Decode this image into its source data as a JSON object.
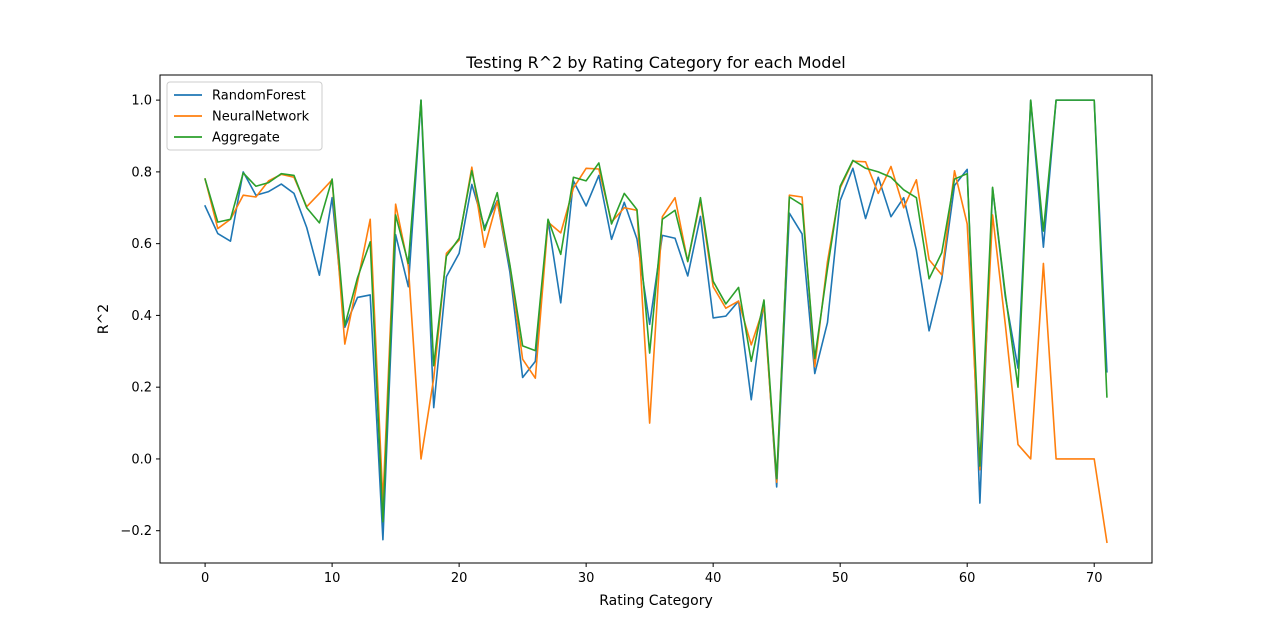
{
  "chart_data": {
    "type": "line",
    "title": "Testing R^2 by Rating Category for each Model",
    "xlabel": "Rating Category",
    "ylabel": "R^2",
    "xlim": [
      -3.55,
      74.55
    ],
    "ylim": [
      -0.29,
      1.07
    ],
    "xticks": [
      0,
      10,
      20,
      30,
      40,
      50,
      60,
      70
    ],
    "yticks": [
      -0.2,
      0.0,
      0.2,
      0.4,
      0.6,
      0.8,
      1.0
    ],
    "xtick_labels": [
      "0",
      "10",
      "20",
      "30",
      "40",
      "50",
      "60",
      "70"
    ],
    "ytick_labels": [
      "−0.2",
      "0.0",
      "0.2",
      "0.4",
      "0.6",
      "0.8",
      "1.0"
    ],
    "grid": false,
    "legend_position": "top-left",
    "x": [
      0,
      1,
      2,
      3,
      4,
      5,
      6,
      7,
      8,
      9,
      10,
      11,
      12,
      13,
      14,
      15,
      16,
      17,
      18,
      19,
      20,
      21,
      22,
      23,
      24,
      25,
      26,
      27,
      28,
      29,
      30,
      31,
      32,
      33,
      34,
      35,
      36,
      37,
      38,
      39,
      40,
      41,
      42,
      43,
      44,
      45,
      46,
      47,
      48,
      49,
      50,
      51,
      52,
      53,
      54,
      55,
      56,
      57,
      58,
      59,
      60,
      61,
      62,
      63,
      64,
      65,
      66,
      67,
      68,
      69,
      70,
      71
    ],
    "series": [
      {
        "name": "RandomForest",
        "color": "#1f77b4",
        "values": [
          0.705,
          0.628,
          0.607,
          0.8,
          0.735,
          0.745,
          0.766,
          0.74,
          0.645,
          0.512,
          0.728,
          0.367,
          0.45,
          0.457,
          -0.225,
          0.625,
          0.48,
          1.0,
          0.143,
          0.508,
          0.573,
          0.765,
          0.645,
          0.72,
          0.52,
          0.227,
          0.272,
          0.665,
          0.435,
          0.775,
          0.705,
          0.79,
          0.612,
          0.715,
          0.613,
          0.375,
          0.623,
          0.615,
          0.51,
          0.676,
          0.393,
          0.398,
          0.44,
          0.165,
          0.44,
          -0.078,
          0.685,
          0.627,
          0.238,
          0.38,
          0.72,
          0.81,
          0.67,
          0.785,
          0.675,
          0.728,
          0.582,
          0.357,
          0.502,
          0.762,
          0.807,
          -0.123,
          0.755,
          0.452,
          0.253,
          1.0,
          0.59,
          1.0,
          1.0,
          1.0,
          1.0,
          0.243
        ]
      },
      {
        "name": "NeuralNetwork",
        "color": "#ff7f0e",
        "values": [
          0.78,
          0.642,
          0.668,
          0.735,
          0.73,
          0.775,
          0.793,
          0.785,
          0.703,
          0.74,
          0.778,
          0.32,
          0.493,
          0.668,
          -0.12,
          0.71,
          0.538,
          0.0,
          0.225,
          0.573,
          0.61,
          0.813,
          0.59,
          0.718,
          0.538,
          0.278,
          0.225,
          0.66,
          0.63,
          0.755,
          0.81,
          0.808,
          0.66,
          0.7,
          0.693,
          0.1,
          0.675,
          0.728,
          0.55,
          0.72,
          0.48,
          0.42,
          0.44,
          0.318,
          0.425,
          -0.065,
          0.735,
          0.73,
          0.257,
          0.55,
          0.755,
          0.83,
          0.828,
          0.74,
          0.815,
          0.7,
          0.778,
          0.555,
          0.513,
          0.803,
          0.655,
          -0.03,
          0.68,
          0.375,
          0.04,
          0.0,
          0.545,
          0.0,
          0.0,
          0.0,
          0.0,
          -0.232
        ]
      },
      {
        "name": "Aggregate",
        "color": "#2ca02c",
        "values": [
          0.78,
          0.66,
          0.668,
          0.797,
          0.76,
          0.77,
          0.795,
          0.79,
          0.7,
          0.658,
          0.78,
          0.372,
          0.505,
          0.605,
          -0.175,
          0.68,
          0.545,
          1.0,
          0.26,
          0.565,
          0.615,
          0.803,
          0.637,
          0.742,
          0.54,
          0.315,
          0.302,
          0.668,
          0.57,
          0.785,
          0.775,
          0.825,
          0.655,
          0.74,
          0.695,
          0.295,
          0.668,
          0.693,
          0.55,
          0.728,
          0.495,
          0.432,
          0.478,
          0.272,
          0.443,
          -0.055,
          0.73,
          0.708,
          0.28,
          0.53,
          0.76,
          0.832,
          0.81,
          0.8,
          0.785,
          0.75,
          0.728,
          0.502,
          0.575,
          0.78,
          0.795,
          -0.02,
          0.757,
          0.46,
          0.2,
          1.0,
          0.635,
          1.0,
          1.0,
          1.0,
          1.0,
          0.173
        ]
      }
    ]
  }
}
